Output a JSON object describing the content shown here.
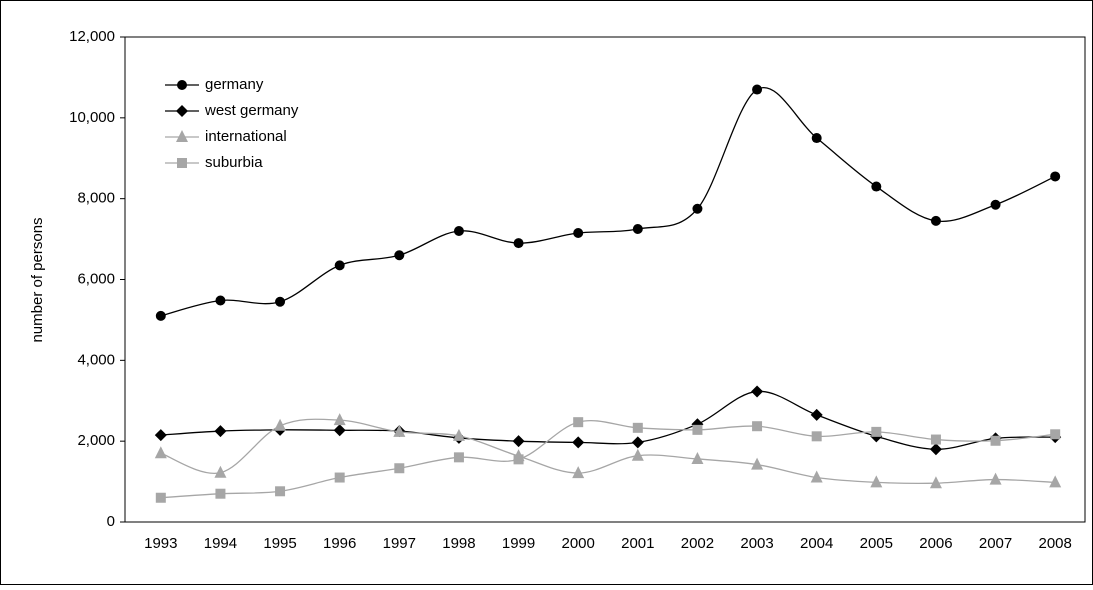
{
  "chart_data": {
    "type": "line",
    "y_label": "number of persons",
    "categories": [
      "1993",
      "1994",
      "1995",
      "1996",
      "1997",
      "1998",
      "1999",
      "2000",
      "2001",
      "2002",
      "2003",
      "2004",
      "2005",
      "2006",
      "2007",
      "2008"
    ],
    "series": [
      {
        "name": "germany",
        "color": "#000000",
        "marker": "circle",
        "values": [
          5100,
          5480,
          5450,
          6350,
          6600,
          7200,
          6900,
          7150,
          7250,
          7750,
          10700,
          9500,
          8300,
          7450,
          7850,
          8550
        ]
      },
      {
        "name": "west germany",
        "color": "#000000",
        "marker": "diamond",
        "values": [
          2150,
          2250,
          2280,
          2270,
          2250,
          2080,
          2000,
          1970,
          1970,
          2420,
          3230,
          2650,
          2120,
          1800,
          2070,
          2100
        ]
      },
      {
        "name": "international",
        "color": "#a6a6a6",
        "marker": "triangle",
        "values": [
          1700,
          1220,
          2380,
          2520,
          2230,
          2130,
          1630,
          1210,
          1640,
          1560,
          1420,
          1100,
          980,
          960,
          1050,
          980
        ]
      },
      {
        "name": "suburbia",
        "color": "#a6a6a6",
        "marker": "square",
        "values": [
          600,
          700,
          760,
          1100,
          1330,
          1600,
          1550,
          2470,
          2330,
          2280,
          2370,
          2120,
          2230,
          2040,
          2010,
          2170
        ]
      }
    ],
    "ylim": [
      0,
      12000
    ],
    "yticks": [
      0,
      {
        "value": 2000,
        "label": "2,000"
      },
      {
        "value": 4000,
        "label": "4,000"
      },
      {
        "value": 6000,
        "label": "6,000"
      },
      {
        "value": 8000,
        "label": "8,000"
      },
      {
        "value": 10000,
        "label": "10,000"
      },
      {
        "value": 12000,
        "label": "12,000"
      }
    ],
    "grid": false,
    "legend": "top-left"
  }
}
